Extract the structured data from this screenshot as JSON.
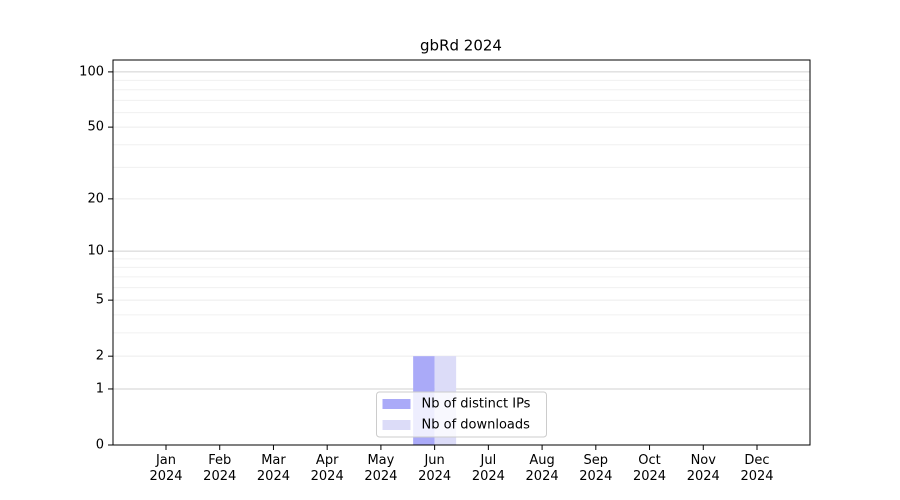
{
  "chart_data": {
    "type": "bar",
    "title": "gbRd 2024",
    "categories": [
      "Jan 2024",
      "Feb 2024",
      "Mar 2024",
      "Apr 2024",
      "May 2024",
      "Jun 2024",
      "Jul 2024",
      "Aug 2024",
      "Sep 2024",
      "Oct 2024",
      "Nov 2024",
      "Dec 2024"
    ],
    "series": [
      {
        "name": "Nb of distinct IPs",
        "color": "#aaaaf8",
        "values": [
          0,
          0,
          0,
          0,
          0,
          2,
          0,
          0,
          0,
          0,
          0,
          0
        ]
      },
      {
        "name": "Nb of downloads",
        "color": "#dcdcf8",
        "values": [
          0,
          0,
          0,
          0,
          0,
          2,
          0,
          0,
          0,
          0,
          0,
          0
        ]
      }
    ],
    "yscale": "log1p",
    "ylim": [
      0,
      116
    ],
    "yticks": [
      0,
      1,
      2,
      5,
      10,
      20,
      50,
      100
    ],
    "yminorticks": [
      3,
      4,
      6,
      7,
      8,
      9,
      30,
      40,
      60,
      70,
      80,
      90
    ],
    "grid": true,
    "legend": "lower center"
  }
}
